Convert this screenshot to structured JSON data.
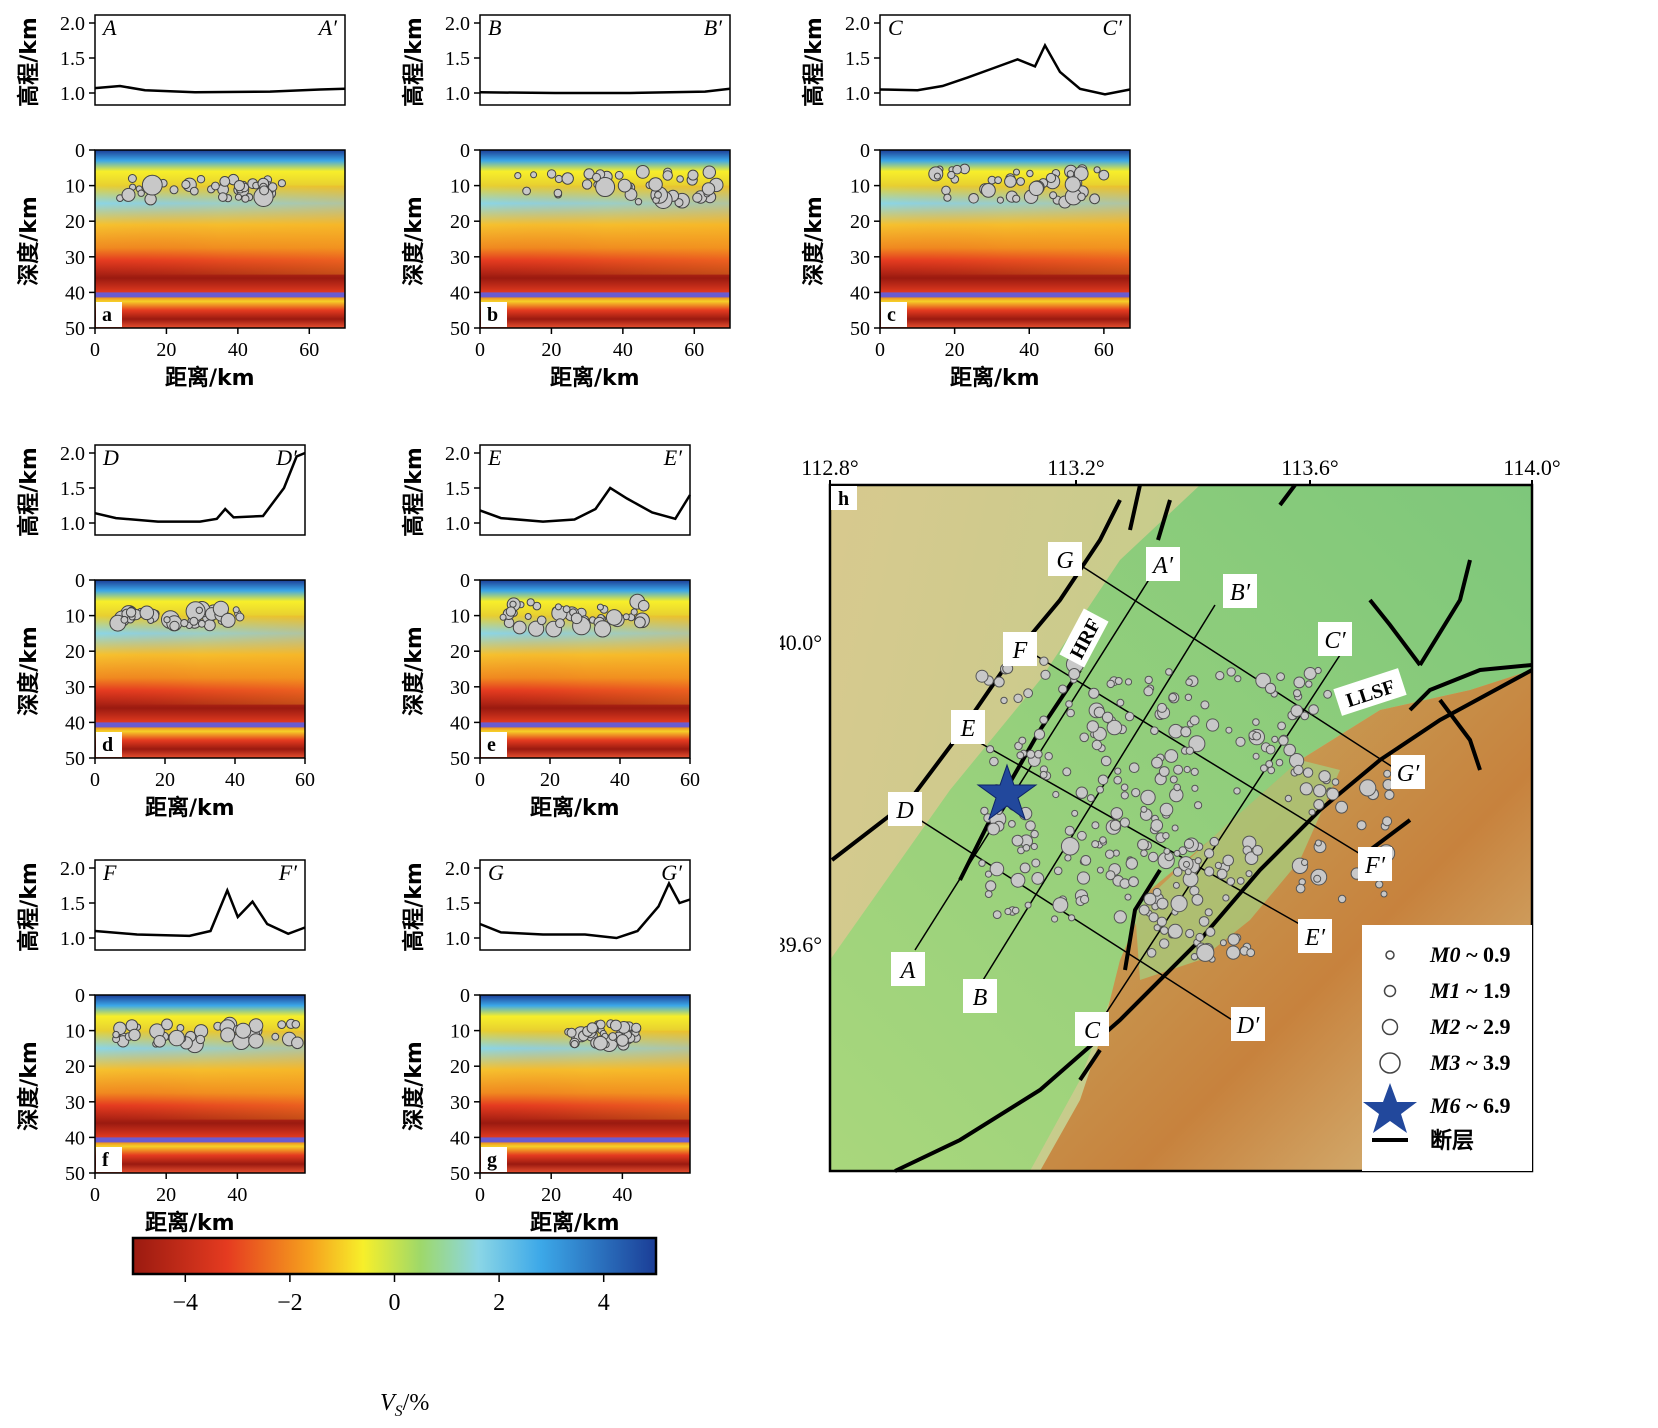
{
  "profiles": [
    {
      "id": "a",
      "start": "A",
      "end": "A′",
      "xmax": 70,
      "xticks": [
        0,
        20,
        40,
        60
      ]
    },
    {
      "id": "b",
      "start": "B",
      "end": "B′",
      "xmax": 70,
      "xticks": [
        0,
        20,
        40,
        60
      ]
    },
    {
      "id": "c",
      "start": "C",
      "end": "C′",
      "xmax": 67,
      "xticks": [
        0,
        20,
        40,
        60
      ]
    },
    {
      "id": "d",
      "start": "D",
      "end": "D′",
      "xmax": 60,
      "xticks": [
        0,
        20,
        40,
        60
      ]
    },
    {
      "id": "e",
      "start": "E",
      "end": "E′",
      "xmax": 60,
      "xticks": [
        0,
        20,
        40,
        60
      ]
    },
    {
      "id": "f",
      "start": "F",
      "end": "F′",
      "xmax": 59,
      "xticks": [
        0,
        20,
        40
      ]
    },
    {
      "id": "g",
      "start": "G",
      "end": "G′",
      "xmax": 59,
      "xticks": [
        0,
        20,
        40
      ]
    }
  ],
  "labels": {
    "elevation_axis": "高程/km",
    "depth_axis": "深度/km",
    "distance_axis": "距离/km",
    "elev_ticks": [
      "2.0",
      "1.5",
      "1.0"
    ],
    "depth_ticks": [
      "0",
      "10",
      "20",
      "30",
      "40",
      "50"
    ]
  },
  "colorbar": {
    "ticks": [
      "−4",
      "−2",
      "0",
      "2",
      "4"
    ],
    "label": "V",
    "label_sub": "S",
    "label_suffix": "/%",
    "colors": [
      "#9a1a10",
      "#e53b20",
      "#f6a21e",
      "#f7ef2a",
      "#9ed86a",
      "#8bd6e6",
      "#3ca8e8",
      "#1b3d96"
    ]
  },
  "map": {
    "panel_label": "h",
    "lon_ticks": [
      "112.8°",
      "113.2°",
      "113.6°",
      "114.0°"
    ],
    "lat_ticks": [
      "40.0°",
      "39.6°"
    ],
    "fault_labels": [
      "HRF",
      "LLSF"
    ],
    "line_labels": [
      "A",
      "A′",
      "B",
      "B′",
      "C",
      "C′",
      "D",
      "D′",
      "E",
      "E′",
      "F",
      "F′",
      "G",
      "G′"
    ]
  },
  "legend": {
    "items": [
      {
        "label": "M0 ~ 0.9",
        "mag": "M0",
        "range": " ~ 0.9"
      },
      {
        "label": "M1 ~ 1.9",
        "mag": "M1",
        "range": " ~ 1.9"
      },
      {
        "label": "M2 ~ 2.9",
        "mag": "M2",
        "range": " ~ 2.9"
      },
      {
        "label": "M3 ~ 3.9",
        "mag": "M3",
        "range": " ~ 3.9"
      },
      {
        "label": "M6 ~ 6.9",
        "mag": "M6",
        "range": " ~ 6.9"
      }
    ],
    "fault": "断层"
  },
  "colors": {
    "star": "#22489c",
    "event": "#c8c8c8",
    "moho": "#6a5bd0"
  }
}
